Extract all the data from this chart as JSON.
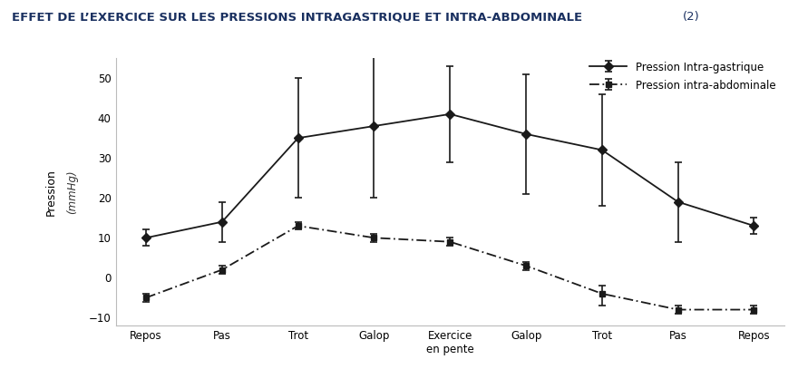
{
  "title_main": "EFFET DE L’EXERCICE SUR LES PRESSIONS INTRAGASTRIQUE ET INTRA-ABDOMINALE",
  "title_suffix": " (2)",
  "categories": [
    "Repos",
    "Pas",
    "Trot",
    "Galop",
    "Exercice\nen pente",
    "Galop",
    "Trot",
    "Pas",
    "Repos"
  ],
  "gastrique_y": [
    10,
    14,
    35,
    38,
    41,
    36,
    32,
    19,
    13
  ],
  "gastrique_yerr_low": [
    2,
    5,
    15,
    18,
    12,
    15,
    14,
    10,
    2
  ],
  "gastrique_yerr_high": [
    2,
    5,
    15,
    18,
    12,
    15,
    14,
    10,
    2
  ],
  "abdominale_y": [
    -5,
    2,
    13,
    10,
    9,
    3,
    -4,
    -8,
    -8
  ],
  "abdominale_yerr_low": [
    1,
    1,
    1,
    1,
    1,
    1,
    3,
    1,
    1
  ],
  "abdominale_yerr_high": [
    1,
    1,
    1,
    1,
    1,
    1,
    2,
    1,
    1
  ],
  "ylabel": "Pression",
  "ylabel2": "(mmHg)",
  "ylim": [
    -12,
    55
  ],
  "yticks": [
    -10,
    0,
    10,
    20,
    30,
    40,
    50
  ],
  "legend_gastrique": "Pression Intra-gastrique",
  "legend_abdominale": "Pression intra-abdominale",
  "line_color": "#1a1a1a",
  "title_color": "#1a3060",
  "bg_color": "#ffffff"
}
